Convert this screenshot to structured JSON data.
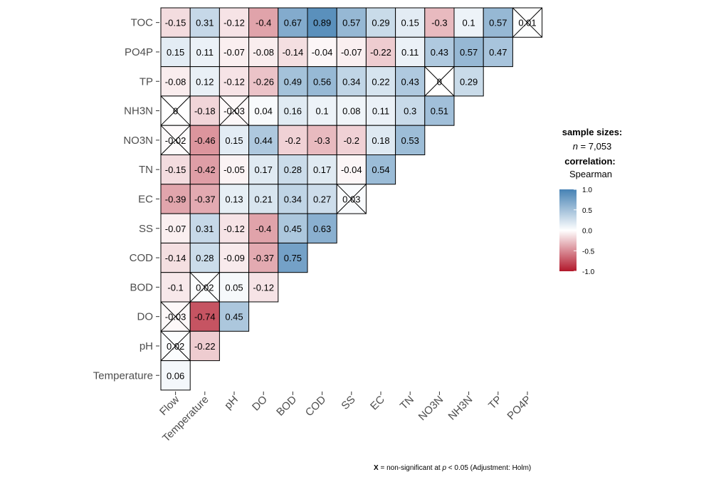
{
  "chart_data": {
    "type": "heatmap",
    "rows": [
      "TOC",
      "PO4P",
      "TP",
      "NH3N",
      "NO3N",
      "TN",
      "EC",
      "SS",
      "COD",
      "BOD",
      "DO",
      "pH",
      "Temperature"
    ],
    "columns": [
      "Flow",
      "Temperature",
      "pH",
      "DO",
      "BOD",
      "COD",
      "SS",
      "EC",
      "TN",
      "NO3N",
      "NH3N",
      "TP",
      "PO4P"
    ],
    "values": [
      [
        "-0.15",
        "0.31",
        "-0.12",
        "-0.4",
        "0.67",
        "0.89",
        "0.57",
        "0.29",
        "0.15",
        "-0.3",
        "0.1",
        "0.57",
        "0.01"
      ],
      [
        "0.15",
        "0.11",
        "-0.07",
        "-0.08",
        "-0.14",
        "-0.04",
        "-0.07",
        "-0.22",
        "0.11",
        "0.43",
        "0.57",
        "0.47"
      ],
      [
        "-0.08",
        "0.12",
        "-0.12",
        "-0.26",
        "0.49",
        "0.56",
        "0.34",
        "0.22",
        "0.43",
        "0",
        "0.29"
      ],
      [
        "0",
        "-0.18",
        "-0.03",
        "0.04",
        "0.16",
        "0.1",
        "0.08",
        "0.11",
        "0.3",
        "0.51"
      ],
      [
        "-0.02",
        "-0.46",
        "0.15",
        "0.44",
        "-0.2",
        "-0.3",
        "-0.2",
        "0.18",
        "0.53"
      ],
      [
        "-0.15",
        "-0.42",
        "-0.05",
        "0.17",
        "0.28",
        "0.17",
        "-0.04",
        "0.54"
      ],
      [
        "-0.39",
        "-0.37",
        "0.13",
        "0.21",
        "0.34",
        "0.27",
        "0.03"
      ],
      [
        "-0.07",
        "0.31",
        "-0.12",
        "-0.4",
        "0.45",
        "0.63"
      ],
      [
        "-0.14",
        "0.28",
        "-0.09",
        "-0.37",
        "0.75"
      ],
      [
        "-0.1",
        "0.02",
        "0.05",
        "-0.12"
      ],
      [
        "-0.03",
        "-0.74",
        "0.45"
      ],
      [
        "0.02",
        "-0.22"
      ],
      [
        "0.06"
      ]
    ],
    "nonsignificant": [
      [
        0,
        12
      ],
      [
        2,
        9
      ],
      [
        3,
        0
      ],
      [
        3,
        2
      ],
      [
        4,
        0
      ],
      [
        6,
        6
      ],
      [
        9,
        1
      ],
      [
        10,
        0
      ],
      [
        11,
        0
      ]
    ],
    "color_scale": {
      "low": "#B2182B",
      "mid": "#FFFFFF",
      "high": "#4682B4",
      "limits": [
        -1,
        1
      ]
    },
    "legend_ticks": [
      "1.0",
      "0.5",
      "0.0",
      "-0.5",
      "-1.0"
    ]
  },
  "legend": {
    "sample_title": "sample sizes:",
    "n_symbol": "n",
    "n_value": " = 7,053",
    "corr_title": "correlation:",
    "corr_method": "Spearman"
  },
  "caption": {
    "x_mark": "X",
    "part1": " = non-significant at ",
    "p_symbol": "p",
    "part2": " < 0.05 (Adjustment: Holm)"
  }
}
